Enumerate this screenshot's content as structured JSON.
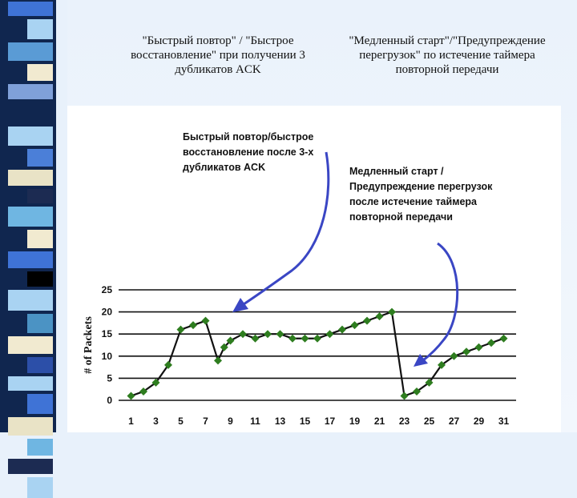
{
  "heading_left": "\"Быстрый повтор\" / \"Быстрое восстановление\" при получении 3 дубликатов ACK",
  "heading_right": "\"Медленный старт\"/\"Предупреждение перегрузок\" по истечение таймера повторной передачи",
  "annotations": {
    "left": "Быстрый повтор/быстрое восстановление после 3-х дубликатов ACK",
    "right": "Медленный старт / Предупреждение перегрузок после истечение таймера повторной передачи"
  },
  "colors": {
    "line": "#111111",
    "marker": "#2e7d1f",
    "arrow": "#3a46c4",
    "grid": "#111111",
    "stripe_dark": "#10264f"
  },
  "chart_data": {
    "type": "line",
    "ylabel": "# of Packets",
    "xlabel": "",
    "ylim": [
      0,
      25
    ],
    "yticks": [
      0,
      5,
      10,
      15,
      20,
      25
    ],
    "xlim": [
      0,
      32
    ],
    "xticks": [
      1,
      3,
      5,
      7,
      9,
      11,
      13,
      15,
      17,
      19,
      21,
      23,
      25,
      27,
      29,
      31
    ],
    "grid": "horizontal",
    "x": [
      1,
      2,
      3,
      4,
      5,
      6,
      7,
      8,
      8.5,
      9,
      10,
      11,
      12,
      13,
      14,
      15,
      16,
      17,
      18,
      19,
      20,
      21,
      22,
      23,
      24,
      25,
      26,
      27,
      28,
      29,
      30,
      31
    ],
    "y": [
      1,
      2,
      4,
      8,
      16,
      17,
      18,
      9,
      12,
      13.5,
      15,
      14,
      15,
      15,
      14,
      14,
      14,
      15,
      16,
      17,
      18,
      19,
      20,
      1,
      2,
      4,
      8,
      10,
      11,
      12,
      13,
      14
    ]
  }
}
